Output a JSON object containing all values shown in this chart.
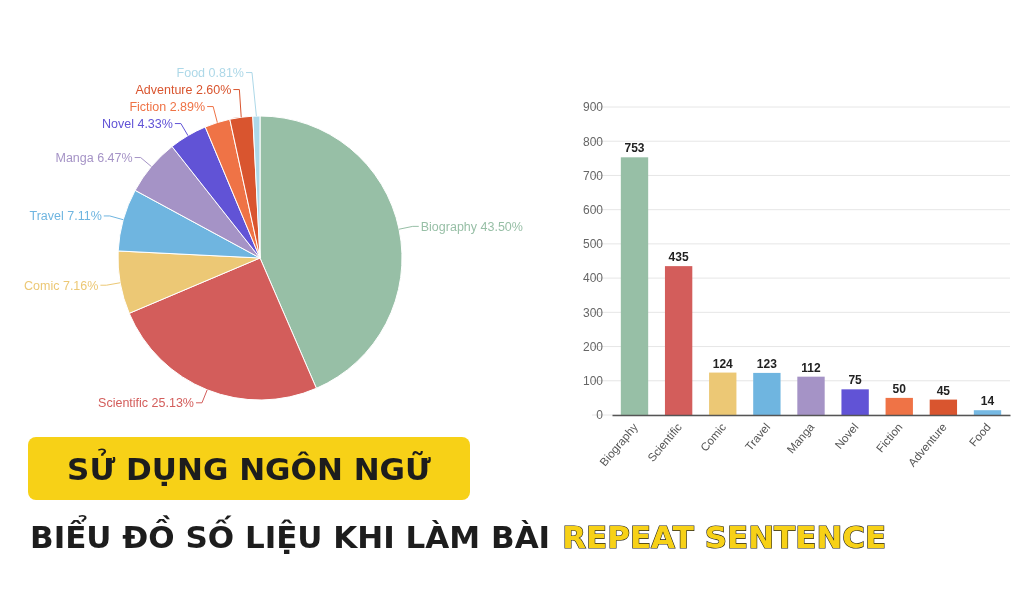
{
  "chart_data": [
    {
      "type": "pie",
      "categories": [
        "Biography",
        "Scientific",
        "Comic",
        "Travel",
        "Manga",
        "Novel",
        "Fiction",
        "Adventure",
        "Food"
      ],
      "values": [
        43.5,
        25.13,
        7.16,
        7.11,
        6.47,
        4.33,
        2.89,
        2.6,
        0.81
      ],
      "value_labels": [
        "43.50%",
        "25.13%",
        "7.16%",
        "7.11%",
        "6.47%",
        "4.33%",
        "2.89%",
        "2.60%",
        "0.81%"
      ],
      "colors": [
        "#97bfa6",
        "#d35d5b",
        "#ecc875",
        "#6fb5e0",
        "#a593c6",
        "#6153d6",
        "#ef7346",
        "#d9552f",
        "#add8e8"
      ]
    },
    {
      "type": "bar",
      "categories": [
        "Biography",
        "Scientific",
        "Comic",
        "Travel",
        "Manga",
        "Novel",
        "Fiction",
        "Adventure",
        "Food"
      ],
      "values": [
        753,
        435,
        124,
        123,
        112,
        75,
        50,
        45,
        14
      ],
      "colors": [
        "#97bfa6",
        "#d35d5b",
        "#ecc875",
        "#6fb5e0",
        "#a593c6",
        "#6153d6",
        "#ef7346",
        "#d9552f",
        "#76b9e3"
      ],
      "ylim": [
        0,
        900
      ],
      "yticks": [
        0,
        100,
        200,
        300,
        400,
        500,
        600,
        700,
        800,
        900
      ],
      "grid": "y",
      "data_labels": true
    },
    {
      "type": "other",
      "title": "SỬ DỤNG NGÔN NGỮ",
      "annotations": [
        "BIỂU ĐỒ SỐ LIỆU KHI LÀM BÀI",
        "REPEAT SENTENCE"
      ]
    }
  ]
}
